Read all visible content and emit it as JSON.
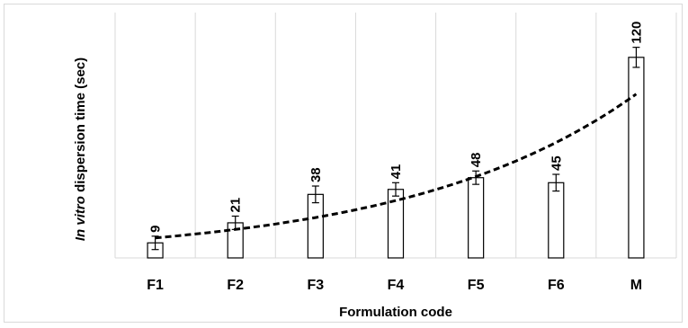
{
  "chart_data": {
    "type": "bar",
    "categories": [
      "F1",
      "F2",
      "F3",
      "F4",
      "F5",
      "F6",
      "M"
    ],
    "values": [
      9,
      21,
      38,
      41,
      48,
      45,
      120
    ],
    "errors": [
      4,
      4,
      5,
      4,
      4,
      5,
      6
    ],
    "data_labels": [
      "9",
      "21",
      "38",
      "41",
      "48",
      "45",
      "120"
    ],
    "xlabel": "Formulation code",
    "ylabel_italic": "In vitro",
    "ylabel_rest": " dispersion time (sec)",
    "ylim": [
      0,
      150
    ],
    "grid": "vertical",
    "legend": "none",
    "trendline": {
      "type": "exponential",
      "style": "dashed",
      "start_value": 12,
      "end_value": 98
    },
    "colors": {
      "bar_fill": "#ffffff",
      "bar_stroke": "#000000",
      "trend": "#000000",
      "grid": "#d9d9d9"
    }
  }
}
